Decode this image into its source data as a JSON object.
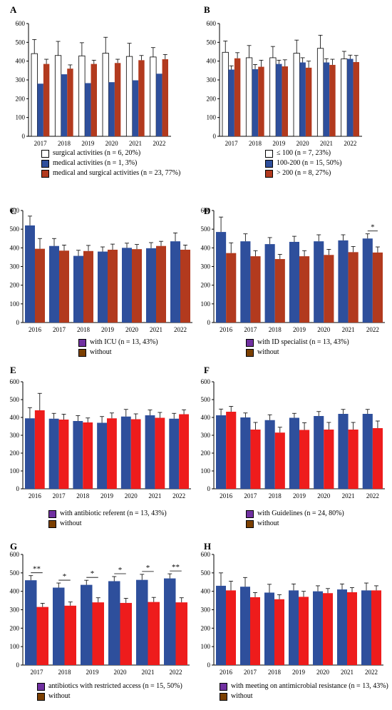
{
  "colors": {
    "white_fill": "#ffffff",
    "blue": "#2e4f9c",
    "red": "#ee1c1c",
    "purple": "#7030a0",
    "brown": "#7b3f00",
    "brownred": "#b23a1e"
  },
  "chart_data": [
    {
      "panel": "A",
      "type": "bar",
      "ylim": [
        0,
        600
      ],
      "yticks": [
        "0",
        "100",
        "200",
        "300",
        "400",
        "500",
        "600"
      ],
      "categories": [
        "2017",
        "2018",
        "2019",
        "2020",
        "2021",
        "2022"
      ],
      "series": [
        {
          "legend": "surgical activities (n = 6, 20%)",
          "color": "#ffffff",
          "values": [
            440,
            430,
            428,
            442,
            425,
            422
          ],
          "errors": [
            75,
            75,
            70,
            85,
            70,
            50
          ]
        },
        {
          "legend": "medical activities (n = 1, 3%)",
          "color": "#2e4f9c",
          "values": [
            280,
            330,
            283,
            288,
            298,
            333
          ],
          "errors": [
            0,
            0,
            0,
            0,
            0,
            0
          ]
        },
        {
          "legend": "medical and surgical activities (n = 23, 77%)",
          "color": "#b23a1e",
          "values": [
            385,
            360,
            385,
            390,
            405,
            410
          ],
          "errors": [
            25,
            20,
            20,
            20,
            25,
            25
          ]
        }
      ],
      "significance": []
    },
    {
      "panel": "B",
      "type": "bar",
      "ylim": [
        0,
        600
      ],
      "yticks": [
        "0",
        "100",
        "200",
        "300",
        "400",
        "500",
        "600"
      ],
      "categories": [
        "2017",
        "2018",
        "2019",
        "2020",
        "2021",
        "2022"
      ],
      "series": [
        {
          "legend": "≤ 100 (n = 7, 23%)",
          "color": "#ffffff",
          "values": [
            447,
            418,
            418,
            442,
            468,
            412
          ],
          "errors": [
            60,
            65,
            60,
            70,
            70,
            40
          ]
        },
        {
          "legend": "100-200 (n = 15, 50%)",
          "color": "#2e4f9c",
          "values": [
            355,
            357,
            385,
            393,
            393,
            412
          ],
          "errors": [
            20,
            25,
            20,
            25,
            20,
            20
          ]
        },
        {
          "legend": "> 200 (n = 8, 27%)",
          "color": "#b23a1e",
          "values": [
            415,
            370,
            372,
            365,
            380,
            395
          ],
          "errors": [
            30,
            35,
            35,
            35,
            30,
            35
          ]
        }
      ],
      "significance": []
    },
    {
      "panel": "C",
      "type": "bar",
      "ylim": [
        0,
        600
      ],
      "yticks": [
        "0",
        "100",
        "200",
        "300",
        "400",
        "500",
        "600"
      ],
      "categories": [
        "2016",
        "2017",
        "2018",
        "2019",
        "2020",
        "2021",
        "2022"
      ],
      "series": [
        {
          "legend": "with ICU (n = 13, 43%)",
          "color": "#2e4f9c",
          "values": [
            520,
            410,
            357,
            380,
            400,
            398,
            435
          ],
          "errors": [
            50,
            40,
            30,
            25,
            25,
            30,
            45
          ]
        },
        {
          "legend": "without",
          "color": "#b23a1e",
          "values": [
            395,
            385,
            383,
            390,
            393,
            410,
            390
          ],
          "errors": [
            55,
            30,
            30,
            30,
            25,
            25,
            25
          ]
        }
      ],
      "significance": []
    },
    {
      "panel": "D",
      "type": "bar",
      "ylim": [
        0,
        600
      ],
      "yticks": [
        "0",
        "100",
        "200",
        "300",
        "400",
        "500",
        "600"
      ],
      "categories": [
        "2016",
        "2017",
        "2018",
        "2019",
        "2020",
        "2021",
        "2022"
      ],
      "series": [
        {
          "legend": "with ID specialist (n = 13, 43%)",
          "color": "#2e4f9c",
          "values": [
            485,
            435,
            420,
            432,
            435,
            440,
            450
          ],
          "errors": [
            80,
            40,
            35,
            30,
            35,
            30,
            25
          ]
        },
        {
          "legend": "without",
          "color": "#b23a1e",
          "values": [
            372,
            355,
            340,
            355,
            362,
            377,
            375
          ],
          "errors": [
            55,
            30,
            25,
            30,
            30,
            30,
            30
          ]
        }
      ],
      "significance": [
        {
          "index": 6,
          "label": "*"
        }
      ]
    },
    {
      "panel": "E",
      "type": "bar",
      "ylim": [
        0,
        600
      ],
      "yticks": [
        "0",
        "100",
        "200",
        "300",
        "400",
        "500",
        "600"
      ],
      "categories": [
        "2016",
        "2017",
        "2018",
        "2019",
        "2020",
        "2021",
        "2022"
      ],
      "series": [
        {
          "legend": "with antibiotic referent (n = 13, 43%)",
          "color": "#2e4f9c",
          "values": [
            395,
            393,
            380,
            370,
            405,
            412,
            393
          ],
          "errors": [
            60,
            30,
            30,
            35,
            40,
            30,
            30
          ]
        },
        {
          "legend": "without",
          "color": "#ee1c1c",
          "values": [
            440,
            388,
            372,
            395,
            390,
            398,
            418
          ],
          "errors": [
            95,
            30,
            25,
            30,
            30,
            30,
            25
          ]
        }
      ],
      "significance": []
    },
    {
      "panel": "F",
      "type": "bar",
      "ylim": [
        0,
        600
      ],
      "yticks": [
        "0",
        "100",
        "200",
        "300",
        "400",
        "500",
        "600"
      ],
      "categories": [
        "2016",
        "2017",
        "2018",
        "2019",
        "2020",
        "2021",
        "2022"
      ],
      "series": [
        {
          "legend": "with Guidelines (n = 24, 80%)",
          "color": "#2e4f9c",
          "values": [
            412,
            400,
            385,
            398,
            408,
            420,
            420
          ],
          "errors": [
            35,
            25,
            30,
            25,
            25,
            25,
            25
          ]
        },
        {
          "legend": "without",
          "color": "#ee1c1c",
          "values": [
            432,
            332,
            315,
            330,
            332,
            332,
            340
          ],
          "errors": [
            30,
            40,
            30,
            40,
            40,
            40,
            40
          ]
        }
      ],
      "significance": []
    },
    {
      "panel": "G",
      "type": "bar",
      "ylim": [
        0,
        600
      ],
      "yticks": [
        "0",
        "100",
        "200",
        "300",
        "400",
        "500",
        "600"
      ],
      "categories": [
        "2017",
        "2018",
        "2019",
        "2020",
        "2021",
        "2022"
      ],
      "series": [
        {
          "legend": "antibiotics with restricted access (n = 15, 50%)",
          "color": "#2e4f9c",
          "values": [
            460,
            420,
            435,
            455,
            462,
            470
          ],
          "errors": [
            25,
            25,
            25,
            25,
            30,
            25
          ]
        },
        {
          "legend": "without",
          "color": "#ee1c1c",
          "values": [
            315,
            322,
            340,
            337,
            342,
            340
          ],
          "errors": [
            20,
            20,
            25,
            25,
            25,
            25
          ]
        }
      ],
      "significance": [
        {
          "index": 0,
          "label": "**"
        },
        {
          "index": 1,
          "label": "*"
        },
        {
          "index": 2,
          "label": "*"
        },
        {
          "index": 3,
          "label": "*"
        },
        {
          "index": 4,
          "label": "*"
        },
        {
          "index": 5,
          "label": "**"
        }
      ]
    },
    {
      "panel": "H",
      "type": "bar",
      "ylim": [
        0,
        600
      ],
      "yticks": [
        "0",
        "100",
        "200",
        "300",
        "400",
        "500",
        "600"
      ],
      "categories": [
        "2016",
        "2017",
        "2018",
        "2019",
        "2020",
        "2021",
        "2022"
      ],
      "series": [
        {
          "legend": "with meeting on antimicrobial resistance (n = 13, 43%)",
          "color": "#2e4f9c",
          "values": [
            430,
            425,
            393,
            405,
            400,
            410,
            405
          ],
          "errors": [
            70,
            50,
            45,
            35,
            30,
            30,
            40
          ]
        },
        {
          "legend": "without",
          "color": "#ee1c1c",
          "values": [
            405,
            368,
            357,
            370,
            390,
            395,
            405
          ],
          "errors": [
            50,
            25,
            25,
            30,
            25,
            25,
            25
          ]
        }
      ],
      "significance": []
    }
  ],
  "legend_swatches": {
    "C": [
      "#7030a0",
      "#7b3f00"
    ],
    "D": [
      "#7030a0",
      "#7b3f00"
    ],
    "E": [
      "#7030a0",
      "#7b3f00"
    ],
    "F": [
      "#7030a0",
      "#7b3f00"
    ],
    "G": [
      "#7030a0",
      "#7b3f00"
    ],
    "H": [
      "#7030a0",
      "#7b3f00"
    ]
  }
}
